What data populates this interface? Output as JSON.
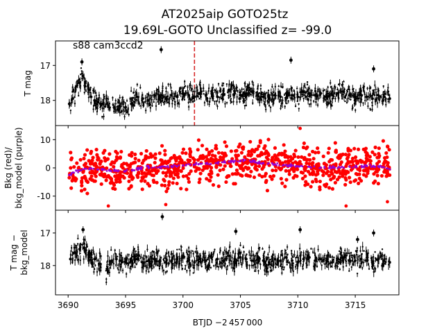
{
  "figure": {
    "title_line1": "AT2025aip  GOTO25tz",
    "title_line2": "19.69L-GOTO Unclassified z= -99.0",
    "xlabel": "BTJD −2 457 000",
    "x_ticks": [
      "3690",
      "3695",
      "3700",
      "3705",
      "3710",
      "3715"
    ]
  },
  "chart_data": [
    {
      "type": "scatter",
      "panel": "top",
      "annotation": "s88 cam3ccd2",
      "ylabel": "T mag",
      "y_inverted": true,
      "xlim": [
        3688.9,
        3718.8
      ],
      "ylim": [
        18.72,
        16.3
      ],
      "y_ticks": [
        17,
        18
      ],
      "vline": {
        "x": 3701.0,
        "style": "dashed",
        "color": "#d62728"
      },
      "series": [
        {
          "color": "#000000",
          "x": [
            3690.1,
            3690.4,
            3690.7,
            3691.0,
            3691.3,
            3691.5,
            3691.8,
            3692.0,
            3692.3,
            3692.6,
            3693.0,
            3693.5,
            3694.0,
            3694.5,
            3695.0,
            3695.5,
            3696.0,
            3696.5,
            3697.0,
            3697.5,
            3698.0,
            3698.5,
            3699.0,
            3699.5,
            3700.0,
            3700.5,
            3701.0,
            3701.5,
            3702.0,
            3702.5,
            3703.0,
            3703.5,
            3704.0,
            3704.5,
            3705.0,
            3705.5,
            3706.0,
            3706.5,
            3707.0,
            3707.5,
            3708.0,
            3708.5,
            3709.0,
            3709.5,
            3710.0,
            3710.5,
            3711.0,
            3711.5,
            3712.0,
            3712.5,
            3713.0,
            3713.5,
            3714.0,
            3714.5,
            3715.0,
            3715.5,
            3716.0,
            3716.5,
            3717.0,
            3717.5,
            3718.0
          ],
          "y": [
            18.1,
            17.95,
            17.6,
            17.5,
            17.3,
            17.5,
            17.7,
            17.9,
            18.0,
            18.05,
            18.1,
            18.15,
            18.2,
            18.15,
            18.2,
            18.1,
            17.9,
            17.95,
            18.0,
            17.85,
            17.9,
            17.95,
            17.85,
            17.9,
            17.8,
            17.85,
            17.9,
            17.8,
            17.85,
            17.75,
            17.9,
            17.85,
            17.7,
            17.8,
            17.85,
            17.8,
            17.75,
            17.85,
            17.9,
            17.95,
            17.85,
            17.9,
            17.8,
            17.85,
            17.9,
            17.75,
            17.8,
            17.85,
            17.8,
            17.9,
            17.85,
            17.8,
            17.75,
            17.85,
            17.9,
            17.85,
            17.9,
            17.95,
            17.85,
            17.9,
            17.95
          ]
        }
      ],
      "outliers": {
        "x": [
          3691.2,
          3698.1,
          3709.4,
          3716.6
        ],
        "y": [
          16.9,
          16.55,
          16.85,
          17.1
        ]
      }
    },
    {
      "type": "scatter",
      "panel": "middle",
      "ylabel": "Bkg (red)/\nbkg_model (purple)",
      "xlim": [
        3688.9,
        3718.8
      ],
      "ylim": [
        -15.0,
        15.0
      ],
      "y_ticks": [
        -10,
        0,
        10
      ],
      "series": [
        {
          "color": "#ff0000",
          "x": [
            3690.1,
            3691.0,
            3692.0,
            3693.0,
            3694.0,
            3695.0,
            3696.0,
            3697.0,
            3698.0,
            3699.0,
            3700.0,
            3701.0,
            3702.0,
            3703.0,
            3704.0,
            3705.0,
            3706.0,
            3707.0,
            3708.0,
            3709.0,
            3710.0,
            3711.0,
            3712.0,
            3713.0,
            3714.0,
            3715.0,
            3716.0,
            3717.0,
            3718.0
          ],
          "y": [
            -2.5,
            -1.0,
            -0.5,
            -0.5,
            -1.0,
            -1.5,
            -0.5,
            0.0,
            0.0,
            0.5,
            0.5,
            1.0,
            1.5,
            1.5,
            2.0,
            2.5,
            2.0,
            1.5,
            1.0,
            1.0,
            0.5,
            0.5,
            0.0,
            0.0,
            0.0,
            0.5,
            0.5,
            0.5,
            -0.5
          ]
        },
        {
          "color": "#9400d3",
          "x": [
            3690.1,
            3691.0,
            3692.0,
            3693.0,
            3694.0,
            3695.0,
            3696.0,
            3697.0,
            3698.0,
            3699.0,
            3700.0,
            3701.0,
            3702.0,
            3703.0,
            3704.0,
            3705.0,
            3706.0,
            3707.0,
            3708.0,
            3709.0,
            3710.0,
            3711.0,
            3712.0,
            3713.0,
            3714.0,
            3715.0,
            3716.0,
            3717.0,
            3718.0
          ],
          "y": [
            -2.5,
            -0.8,
            -0.2,
            -0.4,
            -1.0,
            -1.2,
            -0.2,
            0.3,
            0.3,
            0.6,
            0.8,
            1.2,
            1.6,
            1.8,
            2.2,
            2.6,
            2.2,
            1.7,
            1.3,
            1.0,
            0.6,
            0.4,
            0.1,
            0.2,
            0.1,
            0.5,
            0.6,
            0.6,
            -0.5
          ]
        }
      ],
      "outliers": {
        "x": [
          3693.5,
          3698.5,
          3710.2,
          3714.2,
          3717.8
        ],
        "y": [
          -13.5,
          -13.0,
          14.0,
          -13.5,
          -12.0
        ]
      }
    },
    {
      "type": "scatter",
      "panel": "bottom",
      "ylabel": "T mag −\nbkg_model",
      "y_inverted": true,
      "xlim": [
        3688.9,
        3718.8
      ],
      "ylim": [
        18.9,
        16.3
      ],
      "y_ticks": [
        17,
        18
      ],
      "series": [
        {
          "color": "#000000",
          "x": [
            3690.2,
            3690.6,
            3691.0,
            3691.4,
            3691.8,
            3692.1,
            3692.3,
            3692.7,
            3693.4,
            3693.8,
            3694.2,
            3694.6,
            3695.0,
            3695.5,
            3696.0,
            3696.5,
            3697.0,
            3697.5,
            3698.0,
            3698.5,
            3699.0,
            3699.5,
            3700.0,
            3700.5,
            3701.0,
            3701.5,
            3702.0,
            3702.5,
            3703.0,
            3703.5,
            3704.0,
            3704.5,
            3705.0,
            3705.5,
            3706.0,
            3706.5,
            3707.0,
            3707.5,
            3708.0,
            3708.5,
            3709.0,
            3709.5,
            3710.0,
            3710.5,
            3711.0,
            3711.5,
            3712.0,
            3712.5,
            3713.0,
            3713.5,
            3714.0,
            3714.5,
            3715.0,
            3715.5,
            3716.0,
            3716.5,
            3717.0,
            3717.5,
            3718.0
          ],
          "y": [
            17.8,
            17.6,
            17.5,
            17.45,
            17.65,
            17.9,
            17.8,
            17.95,
            18.1,
            17.85,
            17.8,
            17.85,
            17.9,
            17.85,
            17.8,
            17.9,
            17.85,
            17.8,
            17.85,
            17.9,
            17.85,
            17.8,
            17.75,
            17.85,
            17.9,
            17.8,
            17.85,
            17.75,
            17.8,
            17.85,
            17.7,
            17.8,
            17.75,
            17.8,
            17.85,
            17.8,
            17.85,
            17.9,
            17.8,
            17.85,
            17.75,
            17.85,
            17.9,
            17.8,
            17.75,
            17.85,
            17.8,
            17.85,
            17.9,
            17.8,
            17.75,
            17.85,
            17.85,
            17.8,
            17.85,
            17.9,
            17.8,
            17.85,
            17.9
          ]
        }
      ],
      "outliers": {
        "x": [
          3691.3,
          3698.2,
          3704.6,
          3710.2,
          3715.2,
          3716.6
        ],
        "y": [
          16.9,
          16.5,
          16.95,
          16.9,
          17.2,
          17.0
        ]
      }
    }
  ]
}
